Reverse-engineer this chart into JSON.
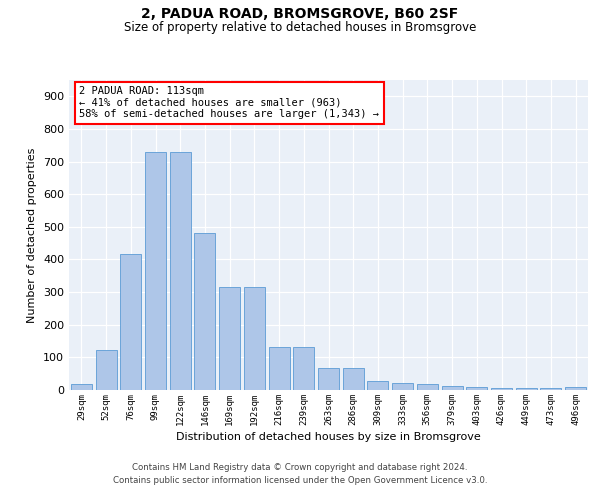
{
  "title1": "2, PADUA ROAD, BROMSGROVE, B60 2SF",
  "title2": "Size of property relative to detached houses in Bromsgrove",
  "xlabel": "Distribution of detached houses by size in Bromsgrove",
  "ylabel": "Number of detached properties",
  "bar_color": "#aec6e8",
  "bar_edge_color": "#5b9bd5",
  "background_color": "#eaf0f8",
  "annotation_text": "2 PADUA ROAD: 113sqm\n← 41% of detached houses are smaller (963)\n58% of semi-detached houses are larger (1,343) →",
  "property_size": 113,
  "categories": [
    "29sqm",
    "52sqm",
    "76sqm",
    "99sqm",
    "122sqm",
    "146sqm",
    "169sqm",
    "192sqm",
    "216sqm",
    "239sqm",
    "263sqm",
    "286sqm",
    "309sqm",
    "333sqm",
    "356sqm",
    "379sqm",
    "403sqm",
    "426sqm",
    "449sqm",
    "473sqm",
    "496sqm"
  ],
  "bar_values": [
    18,
    122,
    418,
    730,
    730,
    482,
    315,
    315,
    133,
    133,
    68,
    68,
    28,
    22,
    18,
    12,
    8,
    5,
    5,
    5,
    8
  ],
  "ylim": [
    0,
    950
  ],
  "yticks": [
    0,
    100,
    200,
    300,
    400,
    500,
    600,
    700,
    800,
    900
  ],
  "footer1": "Contains HM Land Registry data © Crown copyright and database right 2024.",
  "footer2": "Contains public sector information licensed under the Open Government Licence v3.0."
}
